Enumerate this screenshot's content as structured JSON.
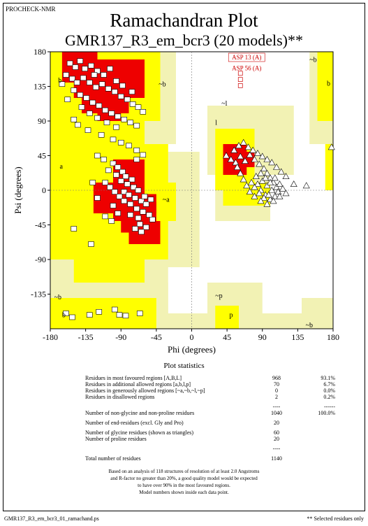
{
  "header": {
    "program": "PROCHECK-NMR",
    "title": "Ramachandran Plot",
    "subtitle": "GMR137_R3_em_bcr3 (20 models)**"
  },
  "chart_data": {
    "type": "scatter",
    "xlabel": "Phi (degrees)",
    "ylabel": "Psi (degrees)",
    "xlim": [
      -180,
      180
    ],
    "ylim": [
      -180,
      180
    ],
    "xticks": [
      "-180",
      "-135",
      "-90",
      "-45",
      "0",
      "45",
      "90",
      "135",
      "180"
    ],
    "yticks": [
      "180",
      "135",
      "90",
      "45",
      "0",
      "-45",
      "-90",
      "-135"
    ],
    "region_labels": [
      "b",
      "a",
      "~b",
      "~a",
      "~l",
      "l",
      "~p",
      "p",
      "~b",
      "~b",
      "b",
      "~b",
      "b"
    ],
    "region_colors": {
      "most_favoured": "#ee0000",
      "additional": "#ffff00",
      "generous": "#f2f2b4",
      "disallowed": "#ffffff"
    },
    "annotations": [
      "ASP 13 (A)",
      "ASP 56 (A)"
    ],
    "series": [
      {
        "name": "non-glycine residues (shown as squares)",
        "points": [
          [
            -155,
            165
          ],
          [
            -148,
            160
          ],
          [
            -142,
            168
          ],
          [
            -136,
            158
          ],
          [
            -128,
            162
          ],
          [
            -120,
            155
          ],
          [
            -112,
            150
          ],
          [
            -104,
            158
          ],
          [
            -160,
            150
          ],
          [
            -152,
            145
          ],
          [
            -146,
            140
          ],
          [
            -138,
            146
          ],
          [
            -130,
            140
          ],
          [
            -122,
            134
          ],
          [
            -114,
            138
          ],
          [
            -106,
            132
          ],
          [
            -98,
            128
          ],
          [
            -90,
            122
          ],
          [
            -82,
            118
          ],
          [
            -75,
            112
          ],
          [
            -68,
            108
          ],
          [
            -62,
            102
          ],
          [
            -150,
            130
          ],
          [
            -142,
            124
          ],
          [
            -134,
            120
          ],
          [
            -126,
            114
          ],
          [
            -118,
            110
          ],
          [
            -110,
            104
          ],
          [
            -102,
            100
          ],
          [
            -94,
            96
          ],
          [
            -86,
            92
          ],
          [
            -78,
            88
          ],
          [
            -70,
            84
          ],
          [
            -140,
            108
          ],
          [
            -130,
            100
          ],
          [
            -120,
            94
          ],
          [
            -108,
            88
          ],
          [
            -96,
            82
          ],
          [
            -150,
            92
          ],
          [
            -145,
            85
          ],
          [
            -132,
            78
          ],
          [
            -115,
            72
          ],
          [
            -100,
            66
          ],
          [
            -90,
            62
          ],
          [
            -80,
            58
          ],
          [
            -70,
            52
          ],
          [
            -62,
            46
          ],
          [
            -158,
            118
          ],
          [
            -165,
            138
          ],
          [
            -124,
            150
          ],
          [
            -96,
            142
          ],
          [
            -88,
            136
          ],
          [
            -76,
            128
          ],
          [
            -100,
            35
          ],
          [
            -94,
            30
          ],
          [
            -106,
            26
          ],
          [
            -88,
            24
          ],
          [
            -96,
            20
          ],
          [
            -84,
            18
          ],
          [
            -76,
            14
          ],
          [
            -90,
            12
          ],
          [
            -82,
            8
          ],
          [
            -74,
            4
          ],
          [
            -68,
            0
          ],
          [
            -86,
            -2
          ],
          [
            -80,
            -6
          ],
          [
            -72,
            -10
          ],
          [
            -64,
            -14
          ],
          [
            -58,
            -18
          ],
          [
            -92,
            -8
          ],
          [
            -86,
            -14
          ],
          [
            -78,
            -18
          ],
          [
            -70,
            -24
          ],
          [
            -62,
            -28
          ],
          [
            -54,
            -32
          ],
          [
            -78,
            -32
          ],
          [
            -68,
            -36
          ],
          [
            -110,
            10
          ],
          [
            -104,
            4
          ],
          [
            -98,
            -2
          ],
          [
            -60,
            -8
          ],
          [
            -52,
            -12
          ],
          [
            -66,
            -44
          ],
          [
            -58,
            -48
          ],
          [
            -50,
            -38
          ],
          [
            -126,
            10
          ],
          [
            -120,
            -10
          ],
          [
            -100,
            -20
          ],
          [
            -94,
            -30
          ],
          [
            -110,
            -34
          ],
          [
            -102,
            -40
          ],
          [
            -72,
            -50
          ],
          [
            -64,
            -54
          ],
          [
            -120,
            45
          ],
          [
            -112,
            40
          ],
          [
            -150,
            -50
          ],
          [
            -128,
            -70
          ],
          [
            -70,
            40
          ],
          [
            -160,
            -160
          ],
          [
            -152,
            -165
          ],
          [
            -130,
            -162
          ],
          [
            -118,
            -158
          ],
          [
            -98,
            -155
          ],
          [
            -92,
            -162
          ],
          [
            -84,
            -163
          ],
          [
            -66,
            -160
          ]
        ]
      },
      {
        "name": "glycine residues (shown as triangles)",
        "points": [
          [
            44,
            45
          ],
          [
            50,
            40
          ],
          [
            56,
            36
          ],
          [
            62,
            44
          ],
          [
            68,
            38
          ],
          [
            74,
            46
          ],
          [
            80,
            40
          ],
          [
            86,
            34
          ],
          [
            92,
            28
          ],
          [
            96,
            22
          ],
          [
            100,
            16
          ],
          [
            104,
            10
          ],
          [
            108,
            4
          ],
          [
            110,
            -2
          ],
          [
            106,
            -8
          ],
          [
            100,
            -12
          ],
          [
            94,
            -6
          ],
          [
            88,
            0
          ],
          [
            84,
            8
          ],
          [
            90,
            12
          ],
          [
            96,
            6
          ],
          [
            102,
            0
          ],
          [
            98,
            -6
          ],
          [
            92,
            -10
          ],
          [
            86,
            -4
          ],
          [
            80,
            4
          ],
          [
            76,
            10
          ],
          [
            82,
            18
          ],
          [
            88,
            22
          ],
          [
            94,
            16
          ],
          [
            100,
            10
          ],
          [
            106,
            16
          ],
          [
            112,
            8
          ],
          [
            116,
            2
          ],
          [
            120,
            -4
          ],
          [
            112,
            -8
          ],
          [
            104,
            -14
          ],
          [
            96,
            -18
          ],
          [
            88,
            -14
          ],
          [
            80,
            -8
          ],
          [
            74,
            -2
          ],
          [
            70,
            6
          ],
          [
            66,
            14
          ],
          [
            62,
            22
          ],
          [
            58,
            30
          ],
          [
            54,
            52
          ],
          [
            60,
            58
          ],
          [
            66,
            62
          ],
          [
            72,
            56
          ],
          [
            78,
            52
          ],
          [
            84,
            48
          ],
          [
            90,
            44
          ],
          [
            96,
            40
          ],
          [
            102,
            36
          ],
          [
            108,
            30
          ],
          [
            114,
            24
          ],
          [
            120,
            18
          ],
          [
            130,
            8
          ],
          [
            146,
            6
          ],
          [
            178,
            56
          ]
        ]
      },
      {
        "name": "labelled residues",
        "points": [
          [
            62,
            152
          ],
          [
            62,
            144
          ],
          [
            62,
            136
          ]
        ]
      }
    ]
  },
  "stats": {
    "title": "Plot statistics",
    "rows": [
      {
        "label": "Residues in most favoured regions  [A,B,L]",
        "count": "968",
        "pct": "93.1%"
      },
      {
        "label": "Residues in additional allowed regions  [a,b,l,p]",
        "count": "70",
        "pct": "6.7%"
      },
      {
        "label": "Residues in generously allowed regions  [~a,~b,~l,~p]",
        "count": "0",
        "pct": "0.0%"
      },
      {
        "label": "Residues in disallowed regions",
        "count": "2",
        "pct": "0.2%"
      },
      {
        "label": "",
        "count": "----",
        "pct": "------"
      },
      {
        "label": "Number of non-glycine and non-proline residues",
        "count": "1040",
        "pct": "100.0%"
      },
      {
        "label": "Number of end-residues (excl. Gly and Pro)",
        "count": "20",
        "pct": ""
      },
      {
        "label": "Number of glycine residues (shown as triangles)",
        "count": "60",
        "pct": ""
      },
      {
        "label": "Number of proline residues",
        "count": "20",
        "pct": ""
      },
      {
        "label": "",
        "count": "----",
        "pct": ""
      },
      {
        "label": "Total number of residues",
        "count": "1140",
        "pct": ""
      }
    ],
    "note_lines": [
      "Based on an analysis of 118 structures of resolution of at least 2.0 Angstroms",
      "and R-factor no greater than 20%, a good quality model would be expected",
      "to have over 90% in the most favoured regions.",
      "Model numbers shown inside each data point."
    ]
  },
  "footer": {
    "filename": "GMR137_R3_em_bcr3_01_ramachand.ps",
    "note": "** Selected residues only"
  }
}
